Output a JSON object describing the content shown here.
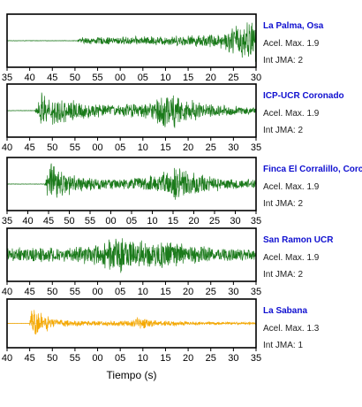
{
  "chart_data": {
    "type": "line",
    "xlabel": "Tiempo (s)",
    "labels": {
      "accel_prefix": "Acel. Max.",
      "jma_prefix": "Int JMA:"
    },
    "colors": {
      "trace_green": "#1a7a1a",
      "trace_orange": "#f5a800",
      "station_text": "#1010d0",
      "baseline": "#bbbbbb"
    },
    "stations": [
      {
        "name": "La Palma, Osa",
        "accel_max": "1.9",
        "jma": "2",
        "color": "trace_green",
        "show_ticks": true,
        "tick_labels": [
          "35",
          "40",
          "45",
          "50",
          "55",
          "00",
          "05",
          "10",
          "15",
          "20",
          "25",
          "30"
        ],
        "onset_fraction": 0.28,
        "amplitude_profile": [
          [
            0.0,
            0.0
          ],
          [
            0.28,
            0.0
          ],
          [
            0.3,
            0.15
          ],
          [
            0.6,
            0.2
          ],
          [
            0.75,
            0.25
          ],
          [
            0.87,
            0.35
          ],
          [
            0.93,
            0.8
          ],
          [
            1.0,
            0.9
          ]
        ]
      },
      {
        "name": "ICP-UCR Coronado",
        "accel_max": "1.9",
        "jma": "2",
        "color": "trace_green",
        "show_ticks": true,
        "tick_labels": [
          "40",
          "45",
          "50",
          "55",
          "00",
          "05",
          "10",
          "15",
          "20",
          "25",
          "30",
          "35"
        ],
        "onset_fraction": 0.11,
        "amplitude_profile": [
          [
            0.0,
            0.0
          ],
          [
            0.11,
            0.0
          ],
          [
            0.14,
            0.8
          ],
          [
            0.2,
            0.6
          ],
          [
            0.35,
            0.3
          ],
          [
            0.45,
            0.25
          ],
          [
            0.58,
            0.4
          ],
          [
            0.63,
            0.9
          ],
          [
            0.7,
            0.6
          ],
          [
            0.8,
            0.3
          ],
          [
            1.0,
            0.15
          ]
        ]
      },
      {
        "name": "Finca El Corralillo, Corc",
        "accel_max": "1.9",
        "jma": "2",
        "color": "trace_green",
        "show_ticks": true,
        "tick_labels": [
          "35",
          "40",
          "45",
          "50",
          "55",
          "00",
          "05",
          "10",
          "15",
          "20",
          "25",
          "30",
          "35"
        ],
        "onset_fraction": 0.15,
        "amplitude_profile": [
          [
            0.0,
            0.0
          ],
          [
            0.15,
            0.0
          ],
          [
            0.17,
            0.95
          ],
          [
            0.22,
            0.6
          ],
          [
            0.3,
            0.3
          ],
          [
            0.45,
            0.2
          ],
          [
            0.6,
            0.4
          ],
          [
            0.68,
            0.75
          ],
          [
            0.75,
            0.5
          ],
          [
            0.85,
            0.3
          ],
          [
            1.0,
            0.2
          ]
        ]
      },
      {
        "name": "San Ramon UCR",
        "accel_max": "1.9",
        "jma": "2",
        "color": "trace_green",
        "show_ticks": true,
        "tick_labels": [
          "40",
          "45",
          "50",
          "55",
          "00",
          "05",
          "10",
          "15",
          "20",
          "25",
          "30",
          "35"
        ],
        "onset_fraction": 0.0,
        "amplitude_profile": [
          [
            0.0,
            0.3
          ],
          [
            0.1,
            0.35
          ],
          [
            0.25,
            0.3
          ],
          [
            0.38,
            0.5
          ],
          [
            0.45,
            0.9
          ],
          [
            0.5,
            0.7
          ],
          [
            0.58,
            0.55
          ],
          [
            0.66,
            0.6
          ],
          [
            0.75,
            0.4
          ],
          [
            0.85,
            0.3
          ],
          [
            1.0,
            0.25
          ]
        ]
      },
      {
        "name": "La Sabana",
        "accel_max": "1.3",
        "jma": "1",
        "color": "trace_orange",
        "show_ticks": true,
        "tick_labels": [
          "40",
          "45",
          "50",
          "55",
          "00",
          "05",
          "10",
          "15",
          "20",
          "25",
          "30",
          "35"
        ],
        "onset_fraction": 0.09,
        "amplitude_profile": [
          [
            0.0,
            0.0
          ],
          [
            0.09,
            0.0
          ],
          [
            0.1,
            1.0
          ],
          [
            0.13,
            0.5
          ],
          [
            0.2,
            0.2
          ],
          [
            0.35,
            0.12
          ],
          [
            0.5,
            0.15
          ],
          [
            0.52,
            0.3
          ],
          [
            0.6,
            0.15
          ],
          [
            0.8,
            0.08
          ],
          [
            1.0,
            0.05
          ]
        ]
      }
    ]
  }
}
